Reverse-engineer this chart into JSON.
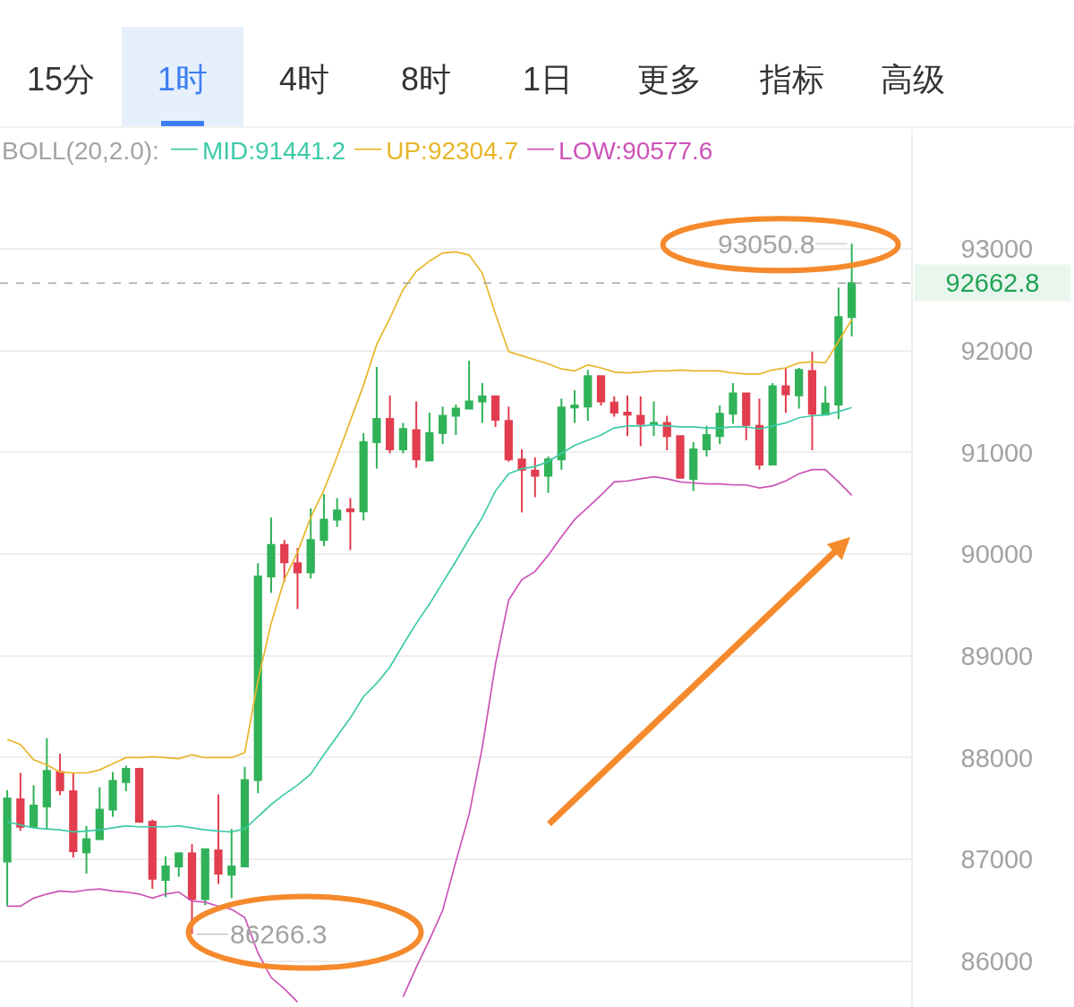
{
  "chart_data": {
    "type": "candlestick",
    "categories": [
      null,
      null,
      null,
      null,
      null,
      null,
      null,
      null,
      null,
      null,
      null,
      null,
      null,
      null,
      null,
      null,
      null,
      null,
      null,
      null,
      null,
      null,
      null,
      null,
      null,
      null,
      null,
      null,
      null,
      null,
      null,
      null,
      null,
      null,
      null,
      null,
      null,
      null,
      null,
      null,
      null,
      null,
      null,
      null,
      null,
      null,
      null,
      null,
      null,
      null,
      null,
      null,
      null,
      null,
      null,
      null,
      null,
      null,
      null,
      null,
      null,
      null,
      null,
      null,
      null
    ],
    "ohlc": [
      [
        86980,
        87680,
        86540,
        87600
      ],
      [
        87590,
        87850,
        87280,
        87320
      ],
      [
        87320,
        87730,
        87320,
        87530
      ],
      [
        87520,
        88190,
        87300,
        87870
      ],
      [
        87860,
        88040,
        87630,
        87680
      ],
      [
        87670,
        87850,
        87020,
        87080
      ],
      [
        87070,
        87330,
        86860,
        87200
      ],
      [
        87200,
        87710,
        87200,
        87490
      ],
      [
        87490,
        87860,
        87420,
        87770
      ],
      [
        87760,
        87920,
        87670,
        87890
      ],
      [
        87890,
        87900,
        87360,
        87370
      ],
      [
        87370,
        87390,
        86710,
        86810
      ],
      [
        86800,
        87030,
        86630,
        86930
      ],
      [
        86930,
        87060,
        86830,
        87060
      ],
      [
        87060,
        87150,
        86266.3,
        86610
      ],
      [
        86610,
        87100,
        86550,
        87100
      ],
      [
        87090,
        87640,
        86760,
        86860
      ],
      [
        86850,
        87300,
        86620,
        86930
      ],
      [
        86930,
        87910,
        86930,
        87780
      ],
      [
        87780,
        89910,
        87650,
        89780
      ],
      [
        89780,
        90360,
        89620,
        90090
      ],
      [
        90090,
        90140,
        89730,
        89920
      ],
      [
        89910,
        90060,
        89460,
        89820
      ],
      [
        89820,
        90450,
        89760,
        90140
      ],
      [
        90140,
        90590,
        90080,
        90340
      ],
      [
        90340,
        90550,
        90270,
        90430
      ],
      [
        90440,
        90550,
        90040,
        90420
      ],
      [
        90420,
        91190,
        90330,
        91100
      ],
      [
        91100,
        91840,
        90840,
        91330
      ],
      [
        91330,
        91560,
        90990,
        91030
      ],
      [
        91030,
        91290,
        90990,
        91230
      ],
      [
        91220,
        91500,
        90850,
        90930
      ],
      [
        90920,
        91390,
        90920,
        91190
      ],
      [
        91190,
        91450,
        91080,
        91360
      ],
      [
        91360,
        91470,
        91170,
        91430
      ],
      [
        91430,
        91900,
        91430,
        91500
      ],
      [
        91500,
        91680,
        91290,
        91550
      ],
      [
        91550,
        91560,
        91250,
        91320
      ],
      [
        91310,
        91450,
        90910,
        90930
      ],
      [
        90930,
        91030,
        90410,
        90830
      ],
      [
        90820,
        90950,
        90560,
        90770
      ],
      [
        90770,
        90960,
        90600,
        90930
      ],
      [
        90930,
        91530,
        90830,
        91440
      ],
      [
        91440,
        91610,
        91290,
        91460
      ],
      [
        91450,
        91810,
        91310,
        91750
      ],
      [
        91750,
        91750,
        91460,
        91500
      ],
      [
        91490,
        91550,
        91350,
        91390
      ],
      [
        91390,
        91560,
        91160,
        91370
      ],
      [
        91360,
        91550,
        91060,
        91280
      ],
      [
        91280,
        91500,
        91160,
        91290
      ],
      [
        91290,
        91360,
        91020,
        91160
      ],
      [
        91160,
        91160,
        90750,
        90750
      ],
      [
        90740,
        91100,
        90620,
        91030
      ],
      [
        91030,
        91260,
        90960,
        91170
      ],
      [
        91160,
        91460,
        91080,
        91380
      ],
      [
        91380,
        91680,
        91280,
        91580
      ],
      [
        91580,
        91580,
        91120,
        91270
      ],
      [
        91260,
        91530,
        90830,
        90880
      ],
      [
        90880,
        91680,
        90880,
        91650
      ],
      [
        91650,
        91830,
        91390,
        91570
      ],
      [
        91560,
        91830,
        91430,
        91810
      ],
      [
        91800,
        91990,
        91020,
        91380
      ],
      [
        91370,
        91650,
        91370,
        91480
      ],
      [
        91470,
        92620,
        91330,
        92330
      ],
      [
        92330,
        93050.8,
        92140,
        92662.8
      ]
    ],
    "colors": [
      "#30b258",
      "#e23e4f",
      "#30b258",
      "#30b258",
      "#e23e4f",
      "#e23e4f",
      "#30b258",
      "#30b258",
      "#30b258",
      "#30b258",
      "#e23e4f",
      "#e23e4f",
      "#30b258",
      "#30b258",
      "#e23e4f",
      "#30b258",
      "#e23e4f",
      "#30b258",
      "#30b258",
      "#30b258",
      "#30b258",
      "#e23e4f",
      "#e23e4f",
      "#30b258",
      "#30b258",
      "#30b258",
      "#e23e4f",
      "#30b258",
      "#30b258",
      "#e23e4f",
      "#30b258",
      "#e23e4f",
      "#30b258",
      "#30b258",
      "#30b258",
      "#30b258",
      "#30b258",
      "#e23e4f",
      "#e23e4f",
      "#e23e4f",
      "#e23e4f",
      "#30b258",
      "#30b258",
      "#30b258",
      "#30b258",
      "#e23e4f",
      "#e23e4f",
      "#e23e4f",
      "#e23e4f",
      "#30b258",
      "#e23e4f",
      "#e23e4f",
      "#30b258",
      "#30b258",
      "#30b258",
      "#30b258",
      "#e23e4f",
      "#e23e4f",
      "#30b258",
      "#e23e4f",
      "#30b258",
      "#e23e4f",
      "#30b258",
      "#30b258",
      "#30b258"
    ],
    "series": [
      {
        "type": "line",
        "name": "MID:91441.2",
        "color": "#3dcaa8",
        "values": [
          87370,
          87340,
          87310,
          87300,
          87290,
          87270,
          87280,
          87290,
          87310,
          87330,
          87320,
          87320,
          87320,
          87330,
          87310,
          87290,
          87280,
          87270,
          87300,
          87420,
          87540,
          87640,
          87730,
          87840,
          88030,
          88210,
          88390,
          88600,
          88730,
          88890,
          89110,
          89320,
          89510,
          89720,
          89930,
          90150,
          90360,
          90620,
          90790,
          90840,
          90860,
          90910,
          90990,
          91070,
          91120,
          91170,
          91240,
          91260,
          91260,
          91270,
          91260,
          91250,
          91250,
          91240,
          91240,
          91250,
          91250,
          91230,
          91260,
          91290,
          91340,
          91360,
          91370,
          91400,
          91441.2
        ]
      },
      {
        "type": "line",
        "name": "UP:92304.7",
        "color": "#e8b62a",
        "values": [
          88180,
          88130,
          87980,
          87930,
          87860,
          87850,
          87850,
          87880,
          87940,
          88000,
          88000,
          88010,
          88000,
          87990,
          88030,
          88000,
          88000,
          88000,
          88050,
          88760,
          89320,
          89750,
          90020,
          90360,
          90630,
          90960,
          91310,
          91660,
          92060,
          92320,
          92600,
          92780,
          92880,
          92960,
          92970,
          92940,
          92760,
          92360,
          91990,
          91950,
          91910,
          91870,
          91820,
          91800,
          91860,
          91830,
          91790,
          91780,
          91790,
          91800,
          91800,
          91810,
          91800,
          91800,
          91800,
          91780,
          91770,
          91770,
          91810,
          91830,
          91880,
          91890,
          91880,
          92090,
          92304.7
        ]
      },
      {
        "type": "line",
        "name": "LOW:90577.6",
        "color": "#cc52b8",
        "values": [
          86540,
          86540,
          86620,
          86660,
          86690,
          86680,
          86700,
          86710,
          86690,
          86680,
          86660,
          86620,
          86660,
          86680,
          86590,
          86580,
          86540,
          86510,
          86430,
          86080,
          85840,
          85730,
          85600,
          null,
          null,
          null,
          null,
          null,
          null,
          null,
          85650,
          85940,
          86210,
          86500,
          86980,
          87440,
          88100,
          88920,
          89550,
          89750,
          89830,
          89990,
          90170,
          90340,
          90460,
          90580,
          90710,
          90720,
          90740,
          90760,
          90740,
          90710,
          90700,
          90690,
          90690,
          90680,
          90680,
          90650,
          90670,
          90720,
          90790,
          90830,
          90830,
          90710,
          90577.6
        ]
      }
    ],
    "legend_title": "BOLL(20,2.0):",
    "legend": "top left",
    "ylim": [
      85550,
      94170
    ],
    "yticks": [
      86000,
      87000,
      88000,
      89000,
      90000,
      91000,
      92000,
      93000
    ],
    "grid": "y",
    "tick_labels": "y",
    "ref_lines": [
      {
        "axis": "y",
        "value": 92662.8,
        "label": "92662.8",
        "color": "#a8a8a8",
        "line_style": "dashed"
      }
    ],
    "annotations": [
      "15分",
      "1时",
      "4时",
      "8时",
      "1日",
      "更多",
      "指标",
      "高级",
      "93050.8",
      "86266.3"
    ]
  }
}
